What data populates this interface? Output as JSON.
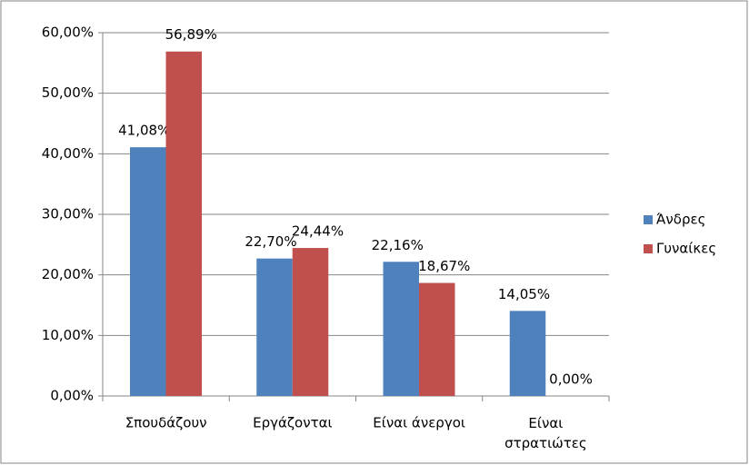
{
  "chart_data": {
    "type": "bar",
    "categories": [
      "Σπουδάζουν",
      "Εργάζονται",
      "Είναι άνεργοι",
      "Είναι στρατιώτες"
    ],
    "series": [
      {
        "name": "Άνδρες",
        "color": "#4f81bd",
        "values": [
          41.08,
          22.7,
          22.16,
          14.05
        ],
        "value_labels": [
          "41,08%",
          "22,70%",
          "22,16%",
          "14,05%"
        ]
      },
      {
        "name": "Γυναίκες",
        "color": "#c0504d",
        "values": [
          56.89,
          24.44,
          18.67,
          0.0
        ],
        "value_labels": [
          "56,89%",
          "24,44%",
          "18,67%",
          "0,00%"
        ]
      }
    ],
    "ylim": [
      0,
      60
    ],
    "yticks": [
      {
        "value": 0,
        "label": "0,00%"
      },
      {
        "value": 10,
        "label": "10,00%"
      },
      {
        "value": 20,
        "label": "20,00%"
      },
      {
        "value": 30,
        "label": "30,00%"
      },
      {
        "value": 40,
        "label": "40,00%"
      },
      {
        "value": 50,
        "label": "50,00%"
      },
      {
        "value": 60,
        "label": "60,00%"
      }
    ],
    "grid": true,
    "legend": "right"
  }
}
